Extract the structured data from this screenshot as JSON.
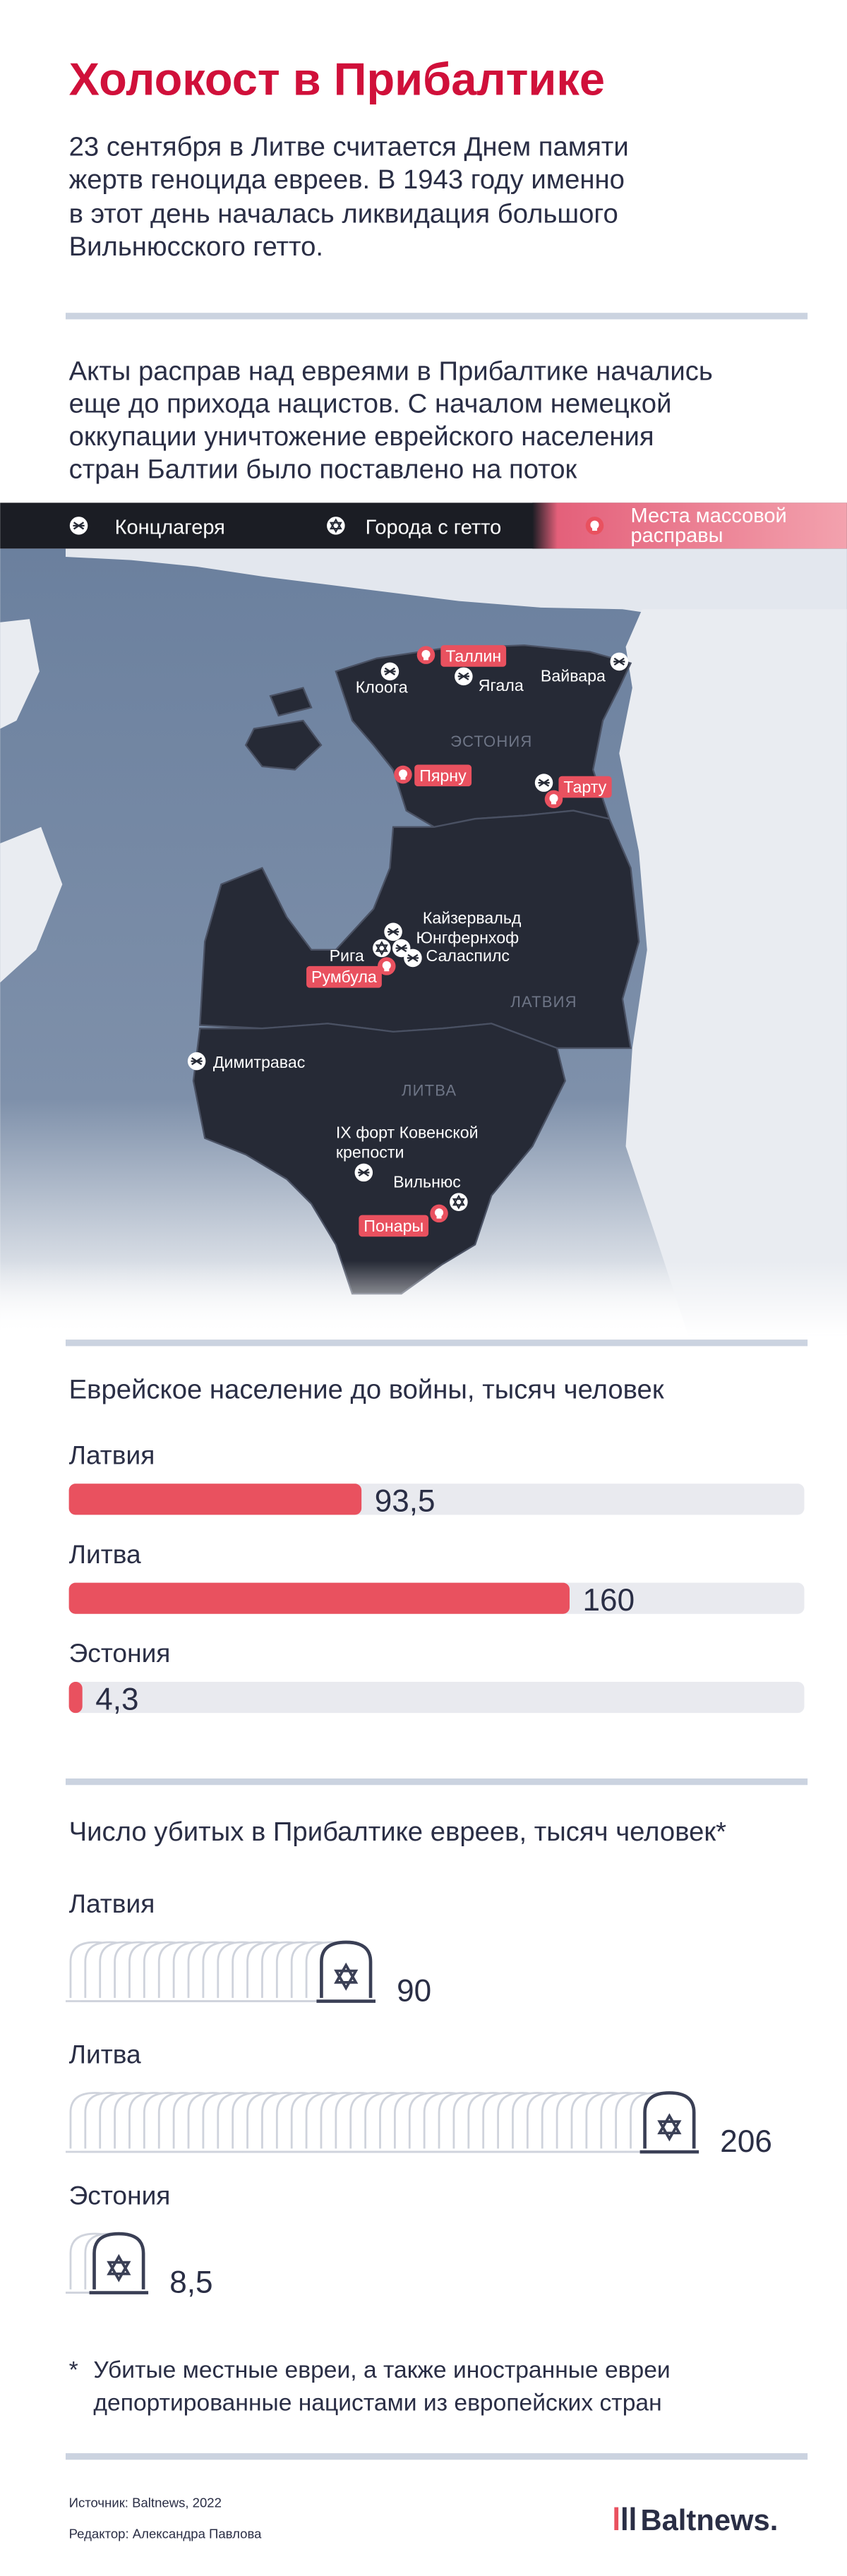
{
  "header": {
    "title": "Холокост в Прибалтике",
    "lead": [
      "23 сентября в Литве считается Днем памяти",
      "жертв геноцида евреев. В 1943 году именно",
      "в этот день началась ликвидация большого",
      "Вильнюсского гетто."
    ]
  },
  "intro": [
    "Акты расправ над евреями в Прибалтике начались",
    "еще до прихода нацистов. С началом немецкой",
    "оккупации уничтожение еврейского населения",
    "стран Балтии было поставлено на поток"
  ],
  "legend": [
    [
      "Концлагеря"
    ],
    [
      "Города с гетто"
    ],
    [
      "Места массовой",
      "расправы"
    ]
  ],
  "map": {
    "countries": [
      "ЭСТОНИЯ",
      "ЛАТВИЯ",
      "ЛИТВА"
    ],
    "places": [
      [
        "Таллин"
      ],
      [
        "Клоога"
      ],
      [
        "Ягала"
      ],
      [
        "Вайвара"
      ],
      [
        "Пярну"
      ],
      [
        "Тарту"
      ],
      [
        "Кайзервальд"
      ],
      [
        "Юнгфернхоф"
      ],
      [
        "Рига"
      ],
      [
        "Саласпилс"
      ],
      [
        "Румбула"
      ],
      [
        "Димитравас"
      ],
      [
        "IX форт Ковенской",
        "крепости"
      ],
      [
        "Вильнюс"
      ],
      [
        "Понары"
      ]
    ]
  },
  "chart_data": [
    {
      "type": "bar",
      "title": "Еврейское население до войны, тысяч человек",
      "categories": [
        "Латвия",
        "Литва",
        "Эстония"
      ],
      "values": [
        93.5,
        160,
        4.3
      ],
      "value_labels": [
        "93,5",
        "160",
        "4,3"
      ],
      "xlim": [
        0,
        235
      ],
      "color": "#e9515f"
    },
    {
      "type": "pictogram",
      "title": "Число убитых в Прибалтике евреев, тысяч человек*",
      "categories": [
        "Латвия",
        "Литва",
        "Эстония"
      ],
      "values": [
        90,
        206,
        8.5
      ],
      "value_labels": [
        "90",
        "206",
        "8,5"
      ],
      "xlim": [
        0,
        235
      ],
      "color": "#3a3f55"
    }
  ],
  "footnote": {
    "mark": "*",
    "lines": [
      "Убитые местные евреи, а также иностранные евреи",
      "депортированные нацистами из европейских стран"
    ]
  },
  "footer": {
    "source": "Источник: Baltnews, 2022",
    "editor": "Редактор: Александра Павлова",
    "logo": "Baltnews."
  }
}
